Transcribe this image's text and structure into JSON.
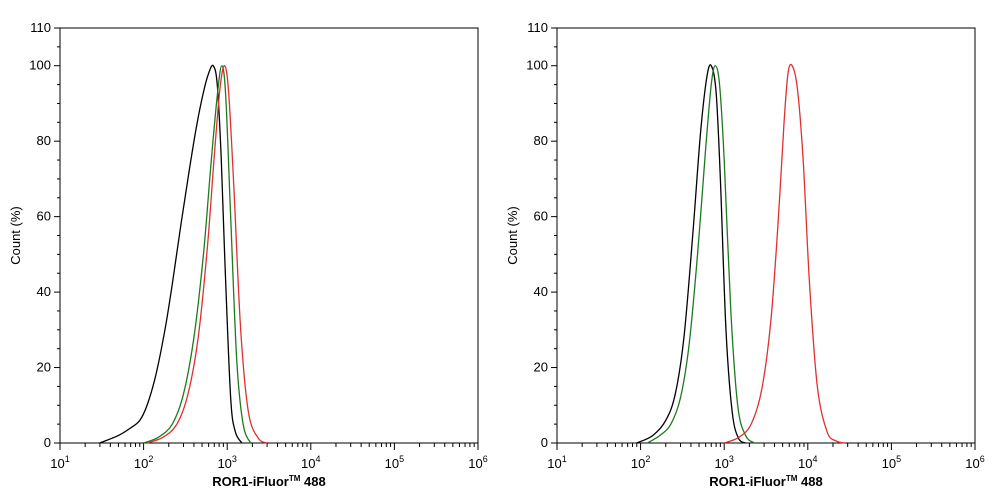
{
  "chart_data": [
    {
      "type": "line",
      "xscale": "log",
      "xlim": [
        10,
        1000000
      ],
      "ylim": [
        0,
        110
      ],
      "ylabel": "Count  (%)",
      "xlabel_main": "ROR1-iFluor",
      "xlabel_super": "TM",
      "xlabel_tail": " 488",
      "x_ticks": [
        {
          "base": "10",
          "exp": "1"
        },
        {
          "base": "10",
          "exp": "2"
        },
        {
          "base": "10",
          "exp": "3"
        },
        {
          "base": "10",
          "exp": "4"
        },
        {
          "base": "10",
          "exp": "5"
        },
        {
          "base": "10",
          "exp": "6"
        }
      ],
      "y_ticks": [
        "0",
        "20",
        "40",
        "60",
        "80",
        "100",
        "110"
      ],
      "series": [
        {
          "color": "#000000",
          "x": [
            30,
            50,
            70,
            90,
            110,
            140,
            180,
            220,
            280,
            350,
            430,
            520,
            600,
            680,
            760,
            850,
            950,
            1100,
            1250,
            1500
          ],
          "y": [
            0,
            2,
            4,
            6,
            10,
            18,
            30,
            42,
            58,
            72,
            84,
            93,
            98,
            100,
            95,
            75,
            45,
            12,
            3,
            0
          ]
        },
        {
          "color": "#1e7a1e",
          "x": [
            100,
            150,
            220,
            300,
            400,
            520,
            640,
            760,
            860,
            960,
            1100,
            1300,
            1550,
            1900
          ],
          "y": [
            0,
            1.5,
            5,
            13,
            28,
            50,
            74,
            92,
            100,
            92,
            60,
            22,
            5,
            0
          ]
        },
        {
          "color": "#e03030",
          "x": [
            110,
            170,
            250,
            340,
            450,
            580,
            700,
            820,
            930,
            1040,
            1200,
            1450,
            1800,
            2400,
            3000
          ],
          "y": [
            0,
            1.5,
            5,
            13,
            28,
            52,
            76,
            94,
            100,
            93,
            68,
            30,
            8,
            1,
            0
          ]
        }
      ]
    },
    {
      "type": "line",
      "xscale": "log",
      "xlim": [
        10,
        1000000
      ],
      "ylim": [
        0,
        110
      ],
      "ylabel": "Count  (%)",
      "xlabel_main": "ROR1-iFluor",
      "xlabel_super": "TM",
      "xlabel_tail": " 488",
      "x_ticks": [
        {
          "base": "10",
          "exp": "1"
        },
        {
          "base": "10",
          "exp": "2"
        },
        {
          "base": "10",
          "exp": "3"
        },
        {
          "base": "10",
          "exp": "4"
        },
        {
          "base": "10",
          "exp": "5"
        },
        {
          "base": "10",
          "exp": "6"
        }
      ],
      "y_ticks": [
        "0",
        "20",
        "40",
        "60",
        "80",
        "100",
        "110"
      ],
      "series": [
        {
          "color": "#000000",
          "x": [
            90,
            140,
            200,
            260,
            330,
            420,
            520,
            620,
            700,
            800,
            900,
            1050,
            1250,
            1500,
            1800
          ],
          "y": [
            0,
            2,
            6,
            13,
            28,
            55,
            82,
            97,
            100,
            93,
            70,
            30,
            8,
            1,
            0
          ]
        },
        {
          "color": "#1e7a1e",
          "x": [
            120,
            170,
            230,
            300,
            380,
            480,
            600,
            700,
            780,
            880,
            1000,
            1200,
            1450,
            1800,
            2300
          ],
          "y": [
            0,
            2,
            5,
            12,
            26,
            50,
            78,
            95,
            100,
            95,
            75,
            35,
            10,
            2,
            0
          ]
        },
        {
          "color": "#e03030",
          "x": [
            1000,
            1500,
            2100,
            2800,
            3600,
            4400,
            5200,
            5800,
            6500,
            7500,
            8800,
            10500,
            13000,
            17000,
            22000,
            28000
          ],
          "y": [
            0,
            1.5,
            5,
            14,
            32,
            58,
            85,
            98,
            100,
            94,
            75,
            42,
            15,
            3,
            0.5,
            0
          ]
        }
      ]
    }
  ]
}
